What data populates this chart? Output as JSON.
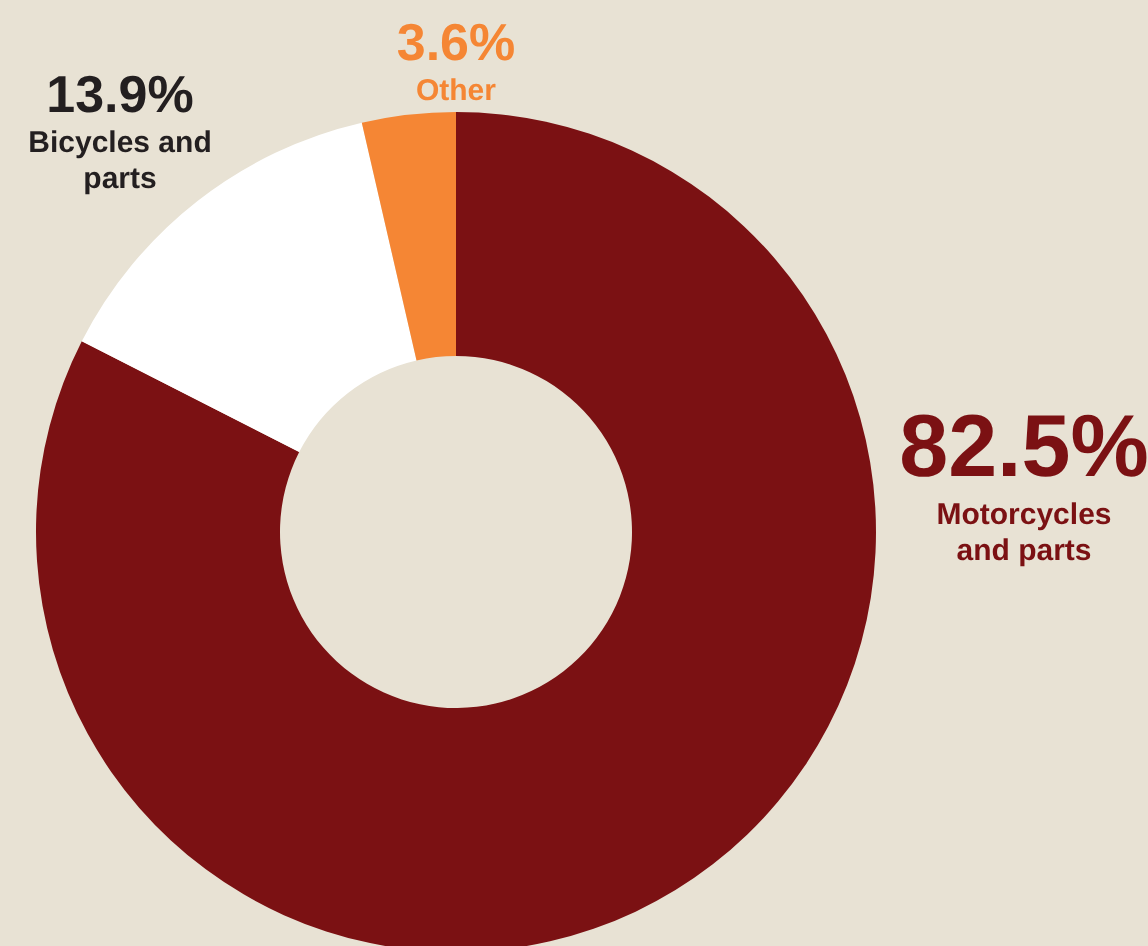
{
  "chart_data": {
    "type": "donut",
    "categories": [
      "Motorcycles and parts",
      "Bicycles and parts",
      "Other"
    ],
    "values": [
      82.5,
      13.9,
      3.6
    ],
    "colors": [
      "#7b1113",
      "#ffffff",
      "#f58634"
    ],
    "value_labels": [
      "82.5%",
      "13.9%",
      "3.6%"
    ]
  }
}
